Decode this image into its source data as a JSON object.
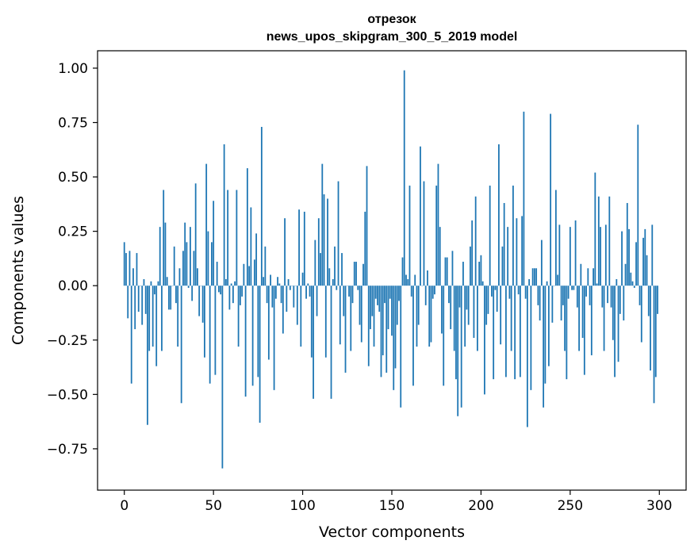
{
  "chart_data": {
    "type": "bar",
    "title_lines": [
      "отрезок",
      "news_upos_skipgram_300_5_2019 model"
    ],
    "xlabel": "Vector components",
    "ylabel": "Components values",
    "xlim": [
      -15,
      315
    ],
    "ylim": [
      -0.94,
      1.08
    ],
    "xticks": [
      0,
      50,
      100,
      150,
      200,
      250,
      300
    ],
    "yticks": [
      -0.75,
      -0.5,
      -0.25,
      0.0,
      0.25,
      0.5,
      0.75,
      1.0
    ],
    "ytick_labels": [
      "−0.75",
      "−0.50",
      "−0.25",
      "0.00",
      "0.25",
      "0.50",
      "0.75",
      "1.00"
    ],
    "grid": false,
    "legend": "none",
    "bar_color": "#1f77b4",
    "values": [
      0.2,
      0.15,
      -0.15,
      0.16,
      -0.45,
      0.08,
      -0.2,
      0.15,
      -0.12,
      0.0,
      -0.18,
      0.03,
      -0.13,
      -0.64,
      -0.3,
      0.02,
      -0.28,
      -0.04,
      -0.37,
      0.02,
      0.27,
      -0.3,
      0.44,
      0.29,
      0.04,
      -0.11,
      -0.11,
      0.0,
      0.18,
      -0.08,
      -0.28,
      0.08,
      -0.54,
      0.16,
      0.29,
      0.2,
      -0.01,
      0.27,
      -0.07,
      0.16,
      0.47,
      0.08,
      -0.14,
      0.0,
      -0.17,
      -0.33,
      0.56,
      0.25,
      -0.45,
      0.2,
      0.39,
      -0.41,
      0.11,
      -0.03,
      -0.04,
      -0.84,
      0.65,
      0.03,
      0.44,
      -0.11,
      0.01,
      -0.08,
      0.02,
      0.44,
      -0.28,
      -0.09,
      -0.05,
      0.1,
      -0.51,
      0.54,
      0.09,
      0.36,
      -0.46,
      0.12,
      0.24,
      -0.42,
      -0.63,
      0.73,
      0.04,
      0.18,
      -0.08,
      -0.34,
      0.05,
      -0.1,
      -0.48,
      -0.06,
      0.04,
      0.01,
      -0.08,
      -0.22,
      0.31,
      -0.12,
      0.03,
      -0.02,
      0.0,
      -0.1,
      0.0,
      -0.18,
      0.35,
      -0.28,
      0.06,
      0.34,
      -0.06,
      0.01,
      -0.05,
      -0.33,
      -0.52,
      0.21,
      -0.14,
      0.31,
      0.15,
      0.56,
      0.42,
      -0.33,
      0.4,
      0.08,
      -0.52,
      0.03,
      0.18,
      -0.02,
      0.48,
      -0.27,
      0.15,
      -0.14,
      -0.4,
      0.0,
      -0.05,
      -0.3,
      -0.08,
      0.11,
      0.11,
      -0.02,
      -0.18,
      -0.26,
      0.1,
      0.34,
      0.55,
      -0.37,
      -0.2,
      -0.14,
      -0.28,
      -0.06,
      -0.09,
      -0.12,
      -0.42,
      -0.32,
      -0.08,
      -0.4,
      -0.2,
      -0.06,
      -0.23,
      -0.48,
      -0.38,
      -0.18,
      -0.07,
      -0.56,
      0.13,
      0.99,
      0.05,
      0.03,
      0.46,
      -0.05,
      -0.46,
      0.05,
      -0.28,
      -0.18,
      0.64,
      0.0,
      0.48,
      -0.09,
      0.07,
      -0.28,
      -0.26,
      -0.06,
      -0.04,
      0.46,
      0.56,
      0.27,
      -0.22,
      -0.46,
      0.13,
      0.13,
      -0.08,
      -0.2,
      0.16,
      -0.3,
      -0.43,
      -0.6,
      -0.1,
      -0.56,
      0.11,
      -0.28,
      -0.11,
      -0.18,
      0.18,
      0.3,
      -0.24,
      0.41,
      -0.3,
      0.11,
      0.14,
      0.02,
      -0.5,
      -0.18,
      -0.13,
      0.46,
      -0.05,
      -0.43,
      -0.02,
      -0.12,
      0.65,
      -0.27,
      0.18,
      0.38,
      -0.42,
      0.27,
      -0.06,
      -0.3,
      0.46,
      -0.43,
      0.31,
      -0.04,
      -0.42,
      0.32,
      0.8,
      -0.06,
      -0.65,
      0.03,
      -0.48,
      0.08,
      0.08,
      0.08,
      -0.09,
      -0.16,
      0.21,
      -0.56,
      -0.45,
      0.02,
      -0.37,
      0.79,
      -0.17,
      0.0,
      0.44,
      0.05,
      0.28,
      -0.16,
      -0.09,
      -0.3,
      -0.43,
      -0.06,
      0.27,
      -0.02,
      -0.02,
      0.3,
      -0.1,
      -0.3,
      0.1,
      -0.24,
      -0.41,
      -0.05,
      0.08,
      -0.09,
      -0.32,
      0.08,
      0.52,
      0.01,
      0.41,
      0.27,
      -0.1,
      -0.3,
      0.28,
      -0.08,
      0.41,
      -0.1,
      -0.25,
      -0.42,
      0.03,
      -0.35,
      -0.13,
      0.25,
      -0.16,
      0.1,
      0.38,
      0.26,
      0.06,
      0.02,
      -0.01,
      0.2,
      0.74,
      -0.09,
      -0.26,
      0.22,
      0.26,
      0.14,
      -0.14,
      -0.39,
      0.28,
      -0.54,
      -0.42,
      -0.13
    ]
  }
}
